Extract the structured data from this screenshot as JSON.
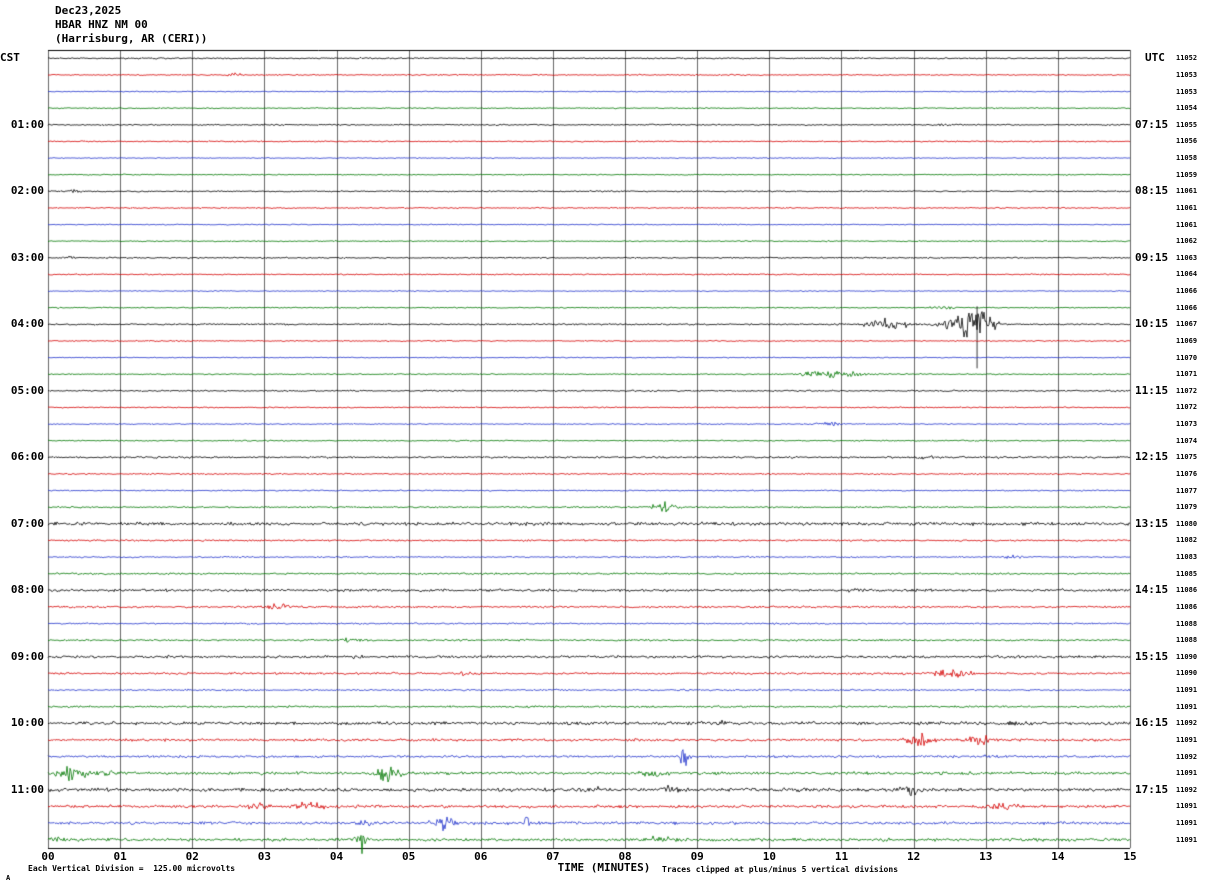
{
  "title": {
    "date": "Dec23,2025",
    "station": "HBAR HNZ NM 00",
    "location": "(Harrisburg, AR (CERI))"
  },
  "axes": {
    "left_label": "CST",
    "right_label": "UTC",
    "x_title": "TIME (MINUTES)",
    "x_ticks": [
      "00",
      "01",
      "02",
      "03",
      "04",
      "05",
      "06",
      "07",
      "08",
      "09",
      "10",
      "11",
      "12",
      "13",
      "14",
      "15"
    ]
  },
  "footer": {
    "scale_note": "Each Vertical Division =  125.00 microvolts",
    "clip_note": "Traces clipped at plus/minus 5 vertical divisions",
    "corner_mark": "A"
  },
  "chart_data": {
    "type": "line",
    "subtype": "seismogram-helicorder",
    "x_range_minutes": [
      0,
      15
    ],
    "minutes_per_row": 15,
    "rows_per_hour": 4,
    "start_time_cst": "00:00",
    "end_time_cst": "11:45",
    "utc_offset_note": "left CST, right UTC",
    "grid": true,
    "trace_colors": {
      "black": "#000000",
      "red": "#d40000",
      "blue": "#2233cc",
      "green": "#007700"
    },
    "color_cycle": [
      "black",
      "red",
      "blue",
      "green"
    ],
    "rows": [
      {
        "cst": "",
        "utc": "",
        "num": "11052",
        "noise": 1.0,
        "events": []
      },
      {
        "cst": "",
        "utc": "",
        "num": "11053",
        "noise": 0.9,
        "events": [
          {
            "t": 2.6,
            "a": 2.5,
            "d": 0.2
          }
        ]
      },
      {
        "cst": "",
        "utc": "",
        "num": "11053",
        "noise": 0.7,
        "events": []
      },
      {
        "cst": "",
        "utc": "",
        "num": "11054",
        "noise": 0.8,
        "events": []
      },
      {
        "cst": "01:00",
        "utc": "07:15",
        "num": "11055",
        "noise": 1.0,
        "events": [
          {
            "t": 12.4,
            "a": 2.5,
            "d": 0.2
          }
        ]
      },
      {
        "cst": "",
        "utc": "",
        "num": "11056",
        "noise": 0.9,
        "events": []
      },
      {
        "cst": "",
        "utc": "",
        "num": "11058",
        "noise": 0.7,
        "events": []
      },
      {
        "cst": "",
        "utc": "",
        "num": "11059",
        "noise": 0.8,
        "events": []
      },
      {
        "cst": "02:00",
        "utc": "08:15",
        "num": "11061",
        "noise": 1.0,
        "events": [
          {
            "t": 0.35,
            "a": 3,
            "d": 0.12
          }
        ]
      },
      {
        "cst": "",
        "utc": "",
        "num": "11061",
        "noise": 0.9,
        "events": []
      },
      {
        "cst": "",
        "utc": "",
        "num": "11061",
        "noise": 0.7,
        "events": []
      },
      {
        "cst": "",
        "utc": "",
        "num": "11062",
        "noise": 0.8,
        "events": []
      },
      {
        "cst": "03:00",
        "utc": "09:15",
        "num": "11063",
        "noise": 1.0,
        "events": [
          {
            "t": 0.3,
            "a": 2.5,
            "d": 0.12
          }
        ]
      },
      {
        "cst": "",
        "utc": "",
        "num": "11064",
        "noise": 0.9,
        "events": []
      },
      {
        "cst": "",
        "utc": "",
        "num": "11066",
        "noise": 0.7,
        "events": []
      },
      {
        "cst": "",
        "utc": "",
        "num": "11066",
        "noise": 0.8,
        "events": [
          {
            "t": 12.4,
            "a": 2.5,
            "d": 0.3
          }
        ]
      },
      {
        "cst": "04:00",
        "utc": "10:15",
        "num": "11067",
        "noise": 1.1,
        "events": [
          {
            "t": 11.65,
            "a": 7,
            "d": 0.5
          },
          {
            "t": 12.45,
            "a": 5,
            "d": 0.3
          },
          {
            "t": 12.75,
            "a": 16,
            "d": 0.3
          },
          {
            "t": 12.98,
            "a": 20,
            "d": 0.25
          }
        ],
        "spikes": [
          {
            "t": 12.88,
            "up": 18,
            "down": 44
          }
        ]
      },
      {
        "cst": "",
        "utc": "",
        "num": "11069",
        "noise": 0.9,
        "events": []
      },
      {
        "cst": "",
        "utc": "",
        "num": "11070",
        "noise": 0.7,
        "events": []
      },
      {
        "cst": "",
        "utc": "",
        "num": "11071",
        "noise": 0.9,
        "events": [
          {
            "t": 10.75,
            "a": 6,
            "d": 0.5
          },
          {
            "t": 11.2,
            "a": 3,
            "d": 0.3
          }
        ]
      },
      {
        "cst": "05:00",
        "utc": "11:15",
        "num": "11072",
        "noise": 1.1,
        "events": []
      },
      {
        "cst": "",
        "utc": "",
        "num": "11072",
        "noise": 0.9,
        "events": []
      },
      {
        "cst": "",
        "utc": "",
        "num": "11073",
        "noise": 0.8,
        "events": [
          {
            "t": 10.8,
            "a": 4.5,
            "d": 0.25
          }
        ]
      },
      {
        "cst": "",
        "utc": "",
        "num": "11074",
        "noise": 0.9,
        "events": []
      },
      {
        "cst": "06:00",
        "utc": "12:15",
        "num": "11075",
        "noise": 1.3,
        "events": [
          {
            "t": 12.15,
            "a": 3,
            "d": 0.3
          }
        ]
      },
      {
        "cst": "",
        "utc": "",
        "num": "11076",
        "noise": 1.0,
        "events": []
      },
      {
        "cst": "",
        "utc": "",
        "num": "11077",
        "noise": 0.9,
        "events": []
      },
      {
        "cst": "",
        "utc": "",
        "num": "11079",
        "noise": 1.1,
        "events": [
          {
            "t": 8.55,
            "a": 7,
            "d": 0.3
          }
        ]
      },
      {
        "cst": "07:00",
        "utc": "13:15",
        "num": "11080",
        "noise": 2.2,
        "events": []
      },
      {
        "cst": "",
        "utc": "",
        "num": "11082",
        "noise": 1.2,
        "events": []
      },
      {
        "cst": "",
        "utc": "",
        "num": "11083",
        "noise": 1.0,
        "events": [
          {
            "t": 13.4,
            "a": 3,
            "d": 0.2
          }
        ]
      },
      {
        "cst": "",
        "utc": "",
        "num": "11085",
        "noise": 1.3,
        "events": []
      },
      {
        "cst": "08:00",
        "utc": "14:15",
        "num": "11086",
        "noise": 1.8,
        "events": [
          {
            "t": 11.2,
            "a": 3,
            "d": 0.25
          }
        ]
      },
      {
        "cst": "",
        "utc": "",
        "num": "11086",
        "noise": 1.4,
        "events": [
          {
            "t": 3.2,
            "a": 4,
            "d": 0.35
          }
        ]
      },
      {
        "cst": "",
        "utc": "",
        "num": "11088",
        "noise": 1.1,
        "events": []
      },
      {
        "cst": "",
        "utc": "",
        "num": "11088",
        "noise": 1.3,
        "events": [
          {
            "t": 4.2,
            "a": 3.5,
            "d": 0.25
          }
        ]
      },
      {
        "cst": "09:00",
        "utc": "15:15",
        "num": "11090",
        "noise": 1.8,
        "events": [
          {
            "t": 4.3,
            "a": 3,
            "d": 0.25
          }
        ]
      },
      {
        "cst": "",
        "utc": "",
        "num": "11090",
        "noise": 1.5,
        "events": [
          {
            "t": 5.85,
            "a": 4,
            "d": 0.25
          },
          {
            "t": 12.55,
            "a": 7,
            "d": 0.45
          }
        ]
      },
      {
        "cst": "",
        "utc": "",
        "num": "11091",
        "noise": 1.2,
        "events": []
      },
      {
        "cst": "",
        "utc": "",
        "num": "11091",
        "noise": 1.3,
        "events": []
      },
      {
        "cst": "10:00",
        "utc": "16:15",
        "num": "11092",
        "noise": 2.2,
        "events": [
          {
            "t": 9.3,
            "a": 4,
            "d": 0.3
          },
          {
            "t": 13.4,
            "a": 4,
            "d": 0.2
          }
        ]
      },
      {
        "cst": "",
        "utc": "",
        "num": "11091",
        "noise": 1.8,
        "events": [
          {
            "t": 12.05,
            "a": 9,
            "d": 0.35
          },
          {
            "t": 12.9,
            "a": 8,
            "d": 0.3
          }
        ]
      },
      {
        "cst": "",
        "utc": "",
        "num": "11092",
        "noise": 1.6,
        "events": [
          {
            "t": 8.85,
            "a": 14,
            "d": 0.15
          },
          {
            "t": 13.0,
            "a": 3,
            "d": 0.2
          }
        ]
      },
      {
        "cst": "",
        "utc": "",
        "num": "11091",
        "noise": 2.0,
        "events": [
          {
            "t": 0.35,
            "a": 10,
            "d": 0.4
          },
          {
            "t": 0.9,
            "a": 5,
            "d": 0.3
          },
          {
            "t": 4.7,
            "a": 12,
            "d": 0.3
          },
          {
            "t": 8.4,
            "a": 6,
            "d": 0.35
          }
        ]
      },
      {
        "cst": "11:00",
        "utc": "17:15",
        "num": "11092",
        "noise": 2.4,
        "events": [
          {
            "t": 7.6,
            "a": 4,
            "d": 0.2
          },
          {
            "t": 8.55,
            "a": 6,
            "d": 0.35
          },
          {
            "t": 11.95,
            "a": 8,
            "d": 0.25
          }
        ]
      },
      {
        "cst": "",
        "utc": "",
        "num": "11091",
        "noise": 2.0,
        "events": [
          {
            "t": 2.9,
            "a": 4,
            "d": 0.25
          },
          {
            "t": 3.6,
            "a": 6,
            "d": 0.4
          },
          {
            "t": 13.25,
            "a": 7,
            "d": 0.35
          }
        ]
      },
      {
        "cst": "",
        "utc": "",
        "num": "11091",
        "noise": 2.0,
        "events": [
          {
            "t": 4.4,
            "a": 5,
            "d": 0.3
          },
          {
            "t": 5.45,
            "a": 14,
            "d": 0.22
          },
          {
            "t": 6.65,
            "a": 12,
            "d": 0.08
          }
        ]
      },
      {
        "cst": "",
        "utc": "",
        "num": "11091",
        "noise": 2.2,
        "events": [
          {
            "t": 0.15,
            "a": 4,
            "d": 0.2
          },
          {
            "t": 4.35,
            "a": 18,
            "d": 0.12
          },
          {
            "t": 8.5,
            "a": 5,
            "d": 0.3
          }
        ]
      }
    ]
  }
}
